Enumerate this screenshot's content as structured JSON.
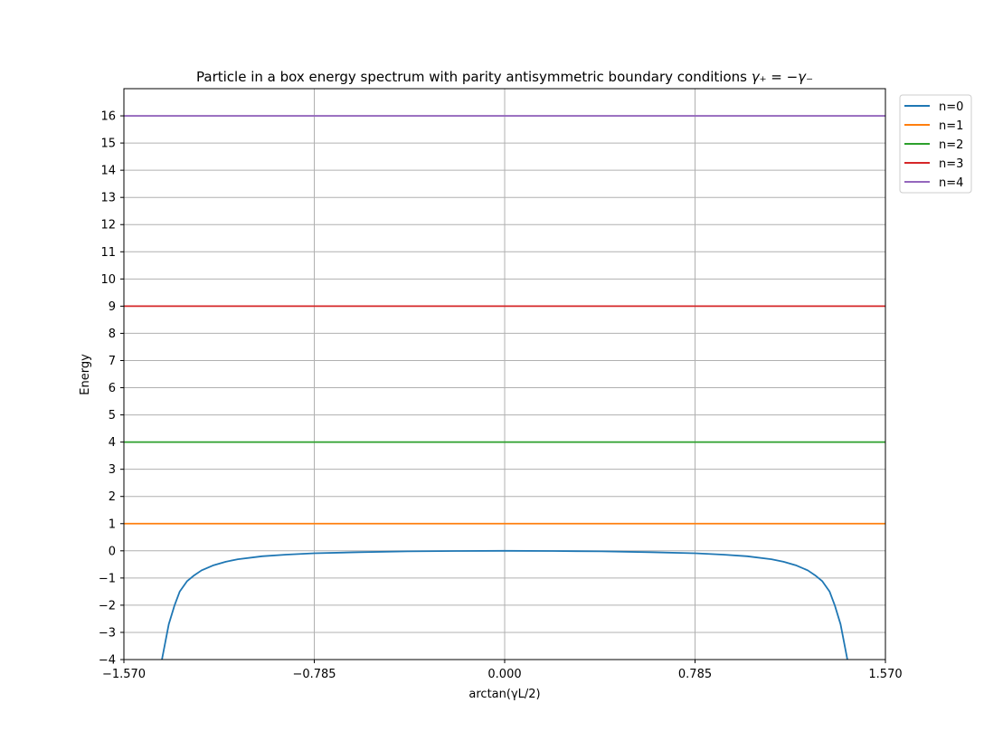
{
  "chart_data": {
    "type": "line",
    "title_main": "Particle in a box energy spectrum with parity antisymmetric boundary conditions ",
    "title_math": "γ₊ = −γ₋",
    "xlabel": "arctan(γL/2)",
    "ylabel": "Energy",
    "xlim": [
      -1.57,
      1.57
    ],
    "ylim": [
      -4,
      17
    ],
    "xticks": [
      -1.57,
      -0.785,
      0.0,
      0.785,
      1.57
    ],
    "xtick_labels": [
      "−1.570",
      "−0.785",
      "0.000",
      "0.785",
      "1.570"
    ],
    "yticks": [
      -4,
      -3,
      -2,
      -1,
      0,
      1,
      2,
      3,
      4,
      5,
      6,
      7,
      8,
      9,
      10,
      11,
      12,
      13,
      14,
      15,
      16
    ],
    "ytick_labels": [
      "−4",
      "−3",
      "−2",
      "−1",
      "0",
      "1",
      "2",
      "3",
      "4",
      "5",
      "6",
      "7",
      "8",
      "9",
      "10",
      "11",
      "12",
      "13",
      "14",
      "15",
      "16"
    ],
    "grid": true,
    "legend_position": "outside-top-right",
    "series": [
      {
        "name": "n=0",
        "color": "#1f77b4",
        "x": [
          -1.4132,
          -1.385,
          -1.361,
          -1.34,
          -1.31,
          -1.28,
          -1.25,
          -1.2,
          -1.15,
          -1.1,
          -1.0,
          -0.9,
          -0.785,
          -0.6,
          -0.4,
          -0.2,
          0.0,
          0.2,
          0.4,
          0.6,
          0.785,
          0.9,
          1.0,
          1.1,
          1.15,
          1.2,
          1.25,
          1.28,
          1.31,
          1.34,
          1.361,
          1.385,
          1.4132
        ],
        "y": [
          -4.0,
          -2.7,
          -2.0,
          -1.5,
          -1.12,
          -0.9,
          -0.72,
          -0.53,
          -0.4,
          -0.31,
          -0.2,
          -0.14,
          -0.09,
          -0.05,
          -0.02,
          -0.006,
          0.0,
          -0.006,
          -0.02,
          -0.05,
          -0.09,
          -0.14,
          -0.2,
          -0.31,
          -0.4,
          -0.53,
          -0.72,
          -0.9,
          -1.12,
          -1.5,
          -2.0,
          -2.7,
          -4.0
        ]
      },
      {
        "name": "n=1",
        "color": "#ff7f0e",
        "x": [
          -1.57,
          1.57
        ],
        "y": [
          1,
          1
        ]
      },
      {
        "name": "n=2",
        "color": "#2ca02c",
        "x": [
          -1.57,
          1.57
        ],
        "y": [
          4,
          4
        ]
      },
      {
        "name": "n=3",
        "color": "#d62728",
        "x": [
          -1.57,
          1.57
        ],
        "y": [
          9,
          9
        ]
      },
      {
        "name": "n=4",
        "color": "#9467bd",
        "x": [
          -1.57,
          1.57
        ],
        "y": [
          16,
          16
        ]
      }
    ]
  }
}
